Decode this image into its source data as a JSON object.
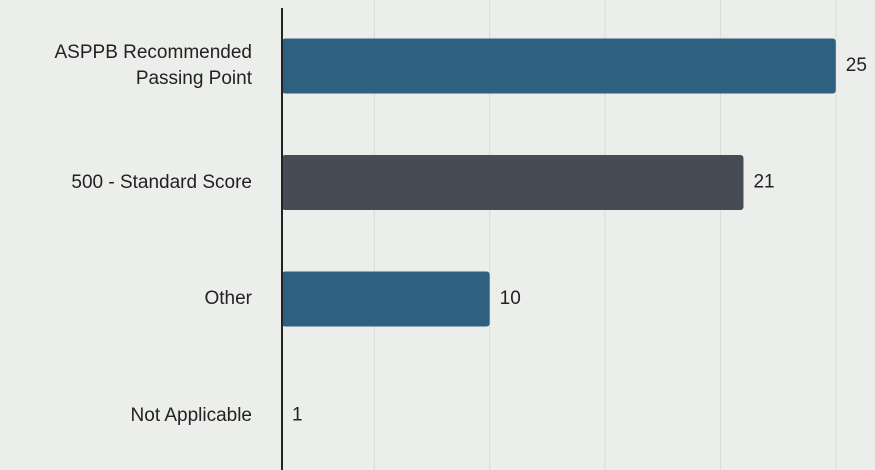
{
  "chart_data": {
    "type": "bar",
    "orientation": "horizontal",
    "categories": [
      "ASPPB Recommended Passing Point",
      "500 - Standard Score",
      "Other",
      "Not Applicable"
    ],
    "values": [
      25,
      21,
      10,
      1
    ],
    "colors": [
      "#2e6080",
      "#474b55",
      "#2e6080",
      "#2e6080"
    ],
    "xlim": [
      1,
      26.7
    ],
    "xticks": [
      5,
      10,
      15,
      20,
      25
    ],
    "grid": true
  }
}
